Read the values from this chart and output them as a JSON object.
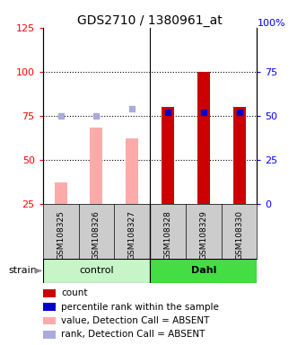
{
  "title": "GDS2710 / 1380961_at",
  "samples": [
    "GSM108325",
    "GSM108326",
    "GSM108327",
    "GSM108328",
    "GSM108329",
    "GSM108330"
  ],
  "group_labels": [
    "control",
    "Dahl"
  ],
  "group_colors": [
    "#c8f5c8",
    "#44dd44"
  ],
  "value_absent": [
    37,
    68,
    62,
    null,
    null,
    null
  ],
  "rank_absent_pct": [
    50,
    50,
    54,
    null,
    null,
    null
  ],
  "count_present": [
    null,
    null,
    null,
    80,
    100,
    80
  ],
  "rank_present_pct": [
    null,
    null,
    null,
    52,
    52,
    52
  ],
  "ylim_left": [
    25,
    125
  ],
  "yticks_left": [
    25,
    50,
    75,
    100,
    125
  ],
  "ylim_right": [
    0,
    100
  ],
  "yticks_right": [
    0,
    25,
    50,
    75
  ],
  "ytick_labels_right": [
    "0",
    "25",
    "50",
    "75"
  ],
  "right_top_label": "100%",
  "color_count": "#cc0000",
  "color_rank_present": "#0000cc",
  "color_value_absent": "#ffaaaa",
  "color_rank_absent": "#aaaadd",
  "bar_width": 0.35,
  "sample_label_bg": "#cccccc",
  "legend_items": [
    {
      "color": "#cc0000",
      "label": "count"
    },
    {
      "color": "#0000cc",
      "label": "percentile rank within the sample"
    },
    {
      "color": "#ffaaaa",
      "label": "value, Detection Call = ABSENT"
    },
    {
      "color": "#aaaadd",
      "label": "rank, Detection Call = ABSENT"
    }
  ]
}
